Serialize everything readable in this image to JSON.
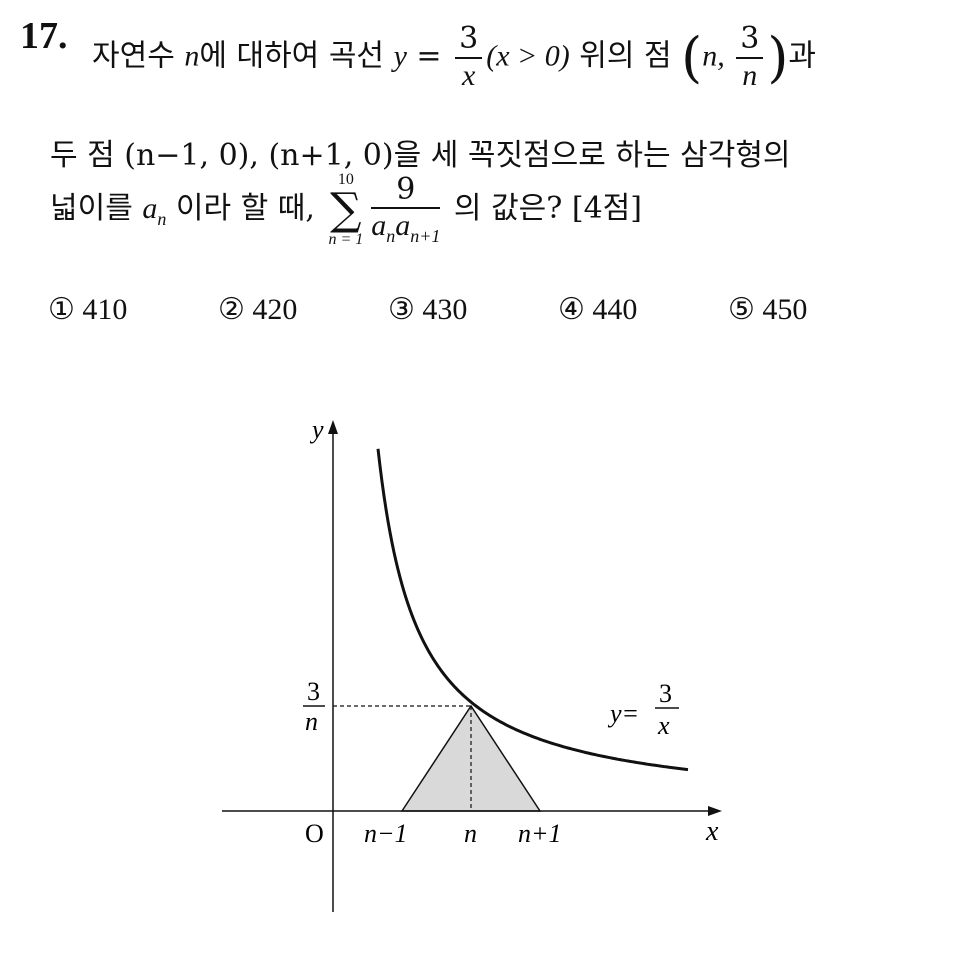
{
  "question": {
    "number": "17.",
    "line1": {
      "t1": "자연수 ",
      "n1": "n",
      "t2": "에 대하여 곡선 ",
      "y": "y",
      "eq": " = ",
      "f1_num": "3",
      "f1_den": "x",
      "cond": "(x > 0)",
      "t3": " 위의 점 ",
      "pt_n": "n, ",
      "f2_num": "3",
      "f2_den": "n",
      "t4": "과"
    },
    "line2": {
      "text": "두 점 (n−1, 0), (n+1, 0)을 세 꼭짓점으로 하는 삼각형의"
    },
    "line3": {
      "t1": "넓이를 ",
      "a": "a",
      "a_sub": "n",
      "t2": " 이라 할 때, ",
      "sum_top": "10",
      "sum_sym": "∑",
      "sum_bot": "n = 1",
      "f_num": "9",
      "f_den_a1": "a",
      "f_den_s1": "n",
      "f_den_a2": "a",
      "f_den_s2": "n+1",
      "t3": " 의 값은? [4점]"
    }
  },
  "choices": [
    {
      "mark": "①",
      "value": "410"
    },
    {
      "mark": "②",
      "value": "420"
    },
    {
      "mark": "③",
      "value": "430"
    },
    {
      "mark": "④",
      "value": "440"
    },
    {
      "mark": "⑤",
      "value": "450"
    }
  ],
  "graph": {
    "y_axis_label": "y",
    "x_axis_label": "x",
    "origin_label": "O",
    "tick_n_minus_1": "n−1",
    "tick_n": "n",
    "tick_n_plus_1": "n+1",
    "y_tick_num": "3",
    "y_tick_den": "n",
    "curve_label_lhs": "y=",
    "curve_label_num": "3",
    "curve_label_den": "x",
    "triangle_fill": "#d9d9d9",
    "curve_color": "#111111"
  }
}
